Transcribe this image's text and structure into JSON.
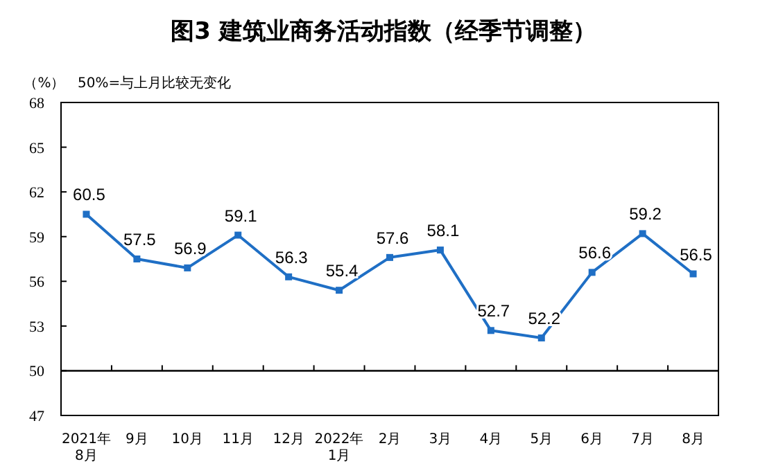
{
  "chart_data": {
    "type": "line",
    "title": "图3  建筑业商务活动指数（经季节调整）",
    "ylabel": "（%）",
    "annotations": [
      "50%=与上月比较无变化"
    ],
    "categories": [
      "2021年\n8月",
      "9月",
      "10月",
      "11月",
      "12月",
      "2022年\n1月",
      "2月",
      "3月",
      "4月",
      "5月",
      "6月",
      "7月",
      "8月"
    ],
    "series": [
      {
        "color": "#1f6fc5",
        "values": [
          60.5,
          57.5,
          56.9,
          59.1,
          56.3,
          55.4,
          57.6,
          58.1,
          52.7,
          52.2,
          56.6,
          59.2,
          56.5
        ]
      }
    ],
    "ylim": [
      47,
      68
    ],
    "yticks": [
      47,
      50,
      53,
      56,
      59,
      62,
      65,
      68
    ],
    "ref_lines": [
      {
        "axis": "y",
        "value": 50,
        "color": "#000000"
      }
    ],
    "data_labels": true,
    "marker": "square",
    "line_style": "solid",
    "grid": false
  }
}
